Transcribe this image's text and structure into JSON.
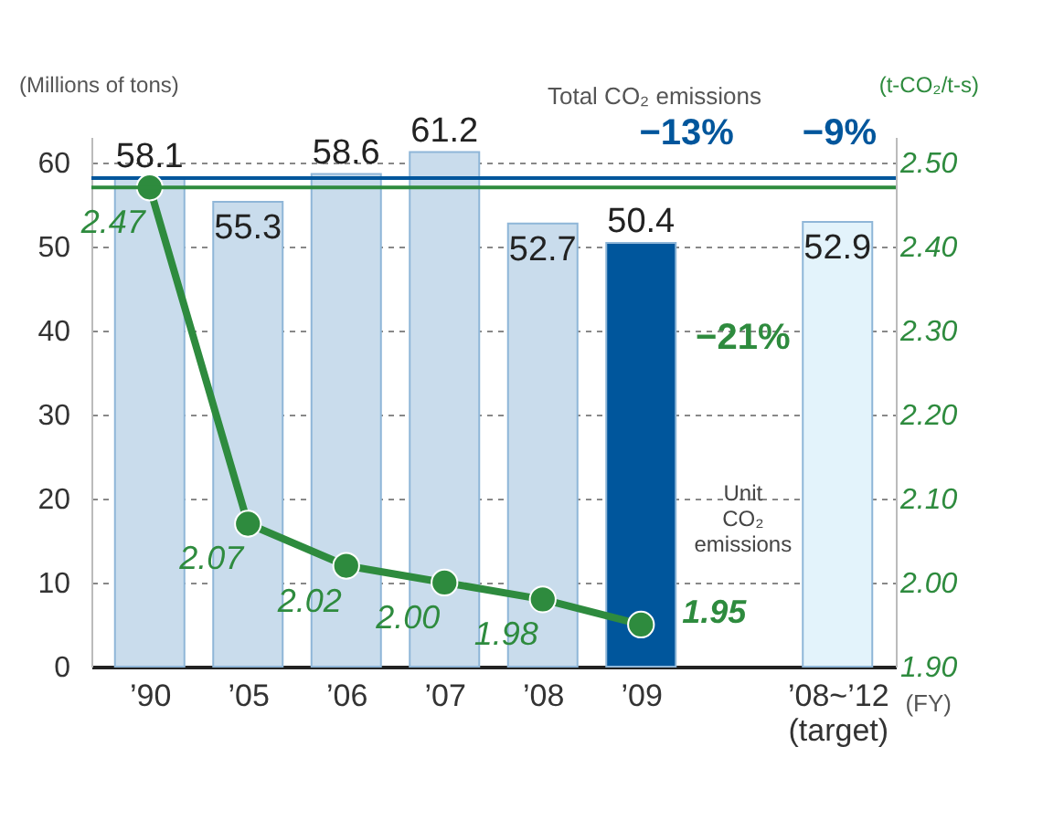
{
  "chart_data": {
    "type": "bar",
    "ylabel": "(Millions of tons)",
    "y2label": "(t-CO₂/t-s)",
    "xlabel": "(FY)",
    "categories": [
      "’90",
      "’05",
      "’06",
      "’07",
      "’08",
      "’09",
      null,
      "’08~’12\n(target)"
    ],
    "series": [
      {
        "colors": [
          "#c9dcec",
          "#c9dcec",
          "#c9dcec",
          "#c9dcec",
          "#c9dcec",
          "#00569c",
          null,
          "#e3f3fb"
        ],
        "values": [
          58.1,
          55.3,
          58.6,
          61.2,
          52.7,
          50.4,
          null,
          52.9
        ]
      },
      {
        "type": "line",
        "axis": "y2",
        "color": "#2e8b3e",
        "values": [
          2.47,
          2.07,
          2.02,
          2.0,
          1.98,
          1.95,
          null,
          null
        ],
        "value_labels": [
          "2.47",
          "2.07",
          "2.02",
          "2.00",
          "1.98",
          "1.95",
          null,
          null
        ]
      }
    ],
    "ylim": [
      0,
      63
    ],
    "yticks": [
      0,
      10,
      20,
      30,
      40,
      50,
      60
    ],
    "y2lim": [
      1.9,
      2.53
    ],
    "y2ticks": [
      {
        "value": 1.9,
        "label": "1.90"
      },
      {
        "value": 2.0,
        "label": "2.00"
      },
      {
        "value": 2.1,
        "label": "2.10"
      },
      {
        "value": 2.2,
        "label": "2.20"
      },
      {
        "value": 2.3,
        "label": "2.30"
      },
      {
        "value": 2.4,
        "label": "2.40"
      },
      {
        "value": 2.5,
        "label": "2.50"
      }
    ],
    "ref_lines": [
      {
        "axis": "y",
        "value": 58.1,
        "color": "#00569c"
      },
      {
        "axis": "y2",
        "value": 2.47,
        "color": "#2e8b3e"
      }
    ],
    "annotations": [
      "Total CO₂ emissions",
      "−13%",
      "−9%",
      "−21%",
      "Unit CO₂ emissions"
    ],
    "data_labels": true,
    "grid": "y",
    "marker": "circle",
    "line_style": "solid"
  }
}
